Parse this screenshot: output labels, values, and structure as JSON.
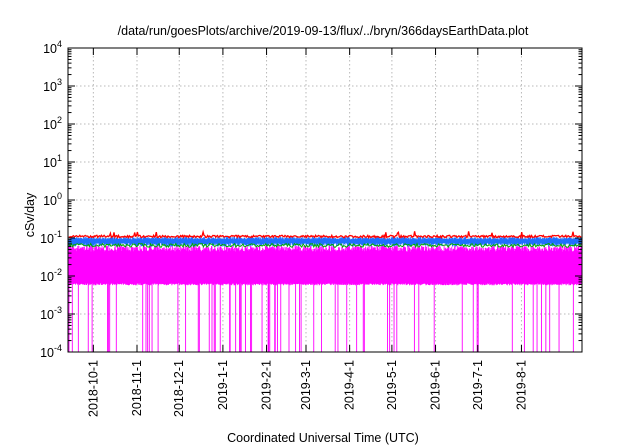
{
  "chart_data": {
    "type": "line",
    "title": "/data/run/goesPlots/archive/2019-09-13/flux/../bryn/366daysEarthData.plot",
    "xlabel": "Coordinated Universal Time (UTC)",
    "ylabel": "cSv/day",
    "yscale": "log",
    "ylim": [
      0.0001,
      10000
    ],
    "xlim": [
      "2018-09-13",
      "2019-09-13"
    ],
    "grid": true,
    "legend": "none",
    "y_ticks": [
      {
        "base": "10",
        "exp": "-4"
      },
      {
        "base": "10",
        "exp": "-3"
      },
      {
        "base": "10",
        "exp": "-2"
      },
      {
        "base": "10",
        "exp": "-1"
      },
      {
        "base": "10",
        "exp": "0"
      },
      {
        "base": "10",
        "exp": "1"
      },
      {
        "base": "10",
        "exp": "2"
      },
      {
        "base": "10",
        "exp": "3"
      },
      {
        "base": "10",
        "exp": "4"
      }
    ],
    "x_ticks": [
      "2018-10-1",
      "2018-11-1",
      "2018-12-1",
      "2019-1-1",
      "2019-2-1",
      "2019-3-1",
      "2019-4-1",
      "2019-5-1",
      "2019-6-1",
      "2019-7-1",
      "2019-8-1"
    ],
    "series": [
      {
        "color": "#ff00ff",
        "band": [
          0.006,
          0.055
        ],
        "dropout_min": 0.0001
      },
      {
        "color": "#00aa00",
        "level": 0.065
      },
      {
        "color": "#1e6fff",
        "band": [
          0.07,
          0.1
        ]
      },
      {
        "color": "#ff0000",
        "level": 0.11
      }
    ]
  }
}
